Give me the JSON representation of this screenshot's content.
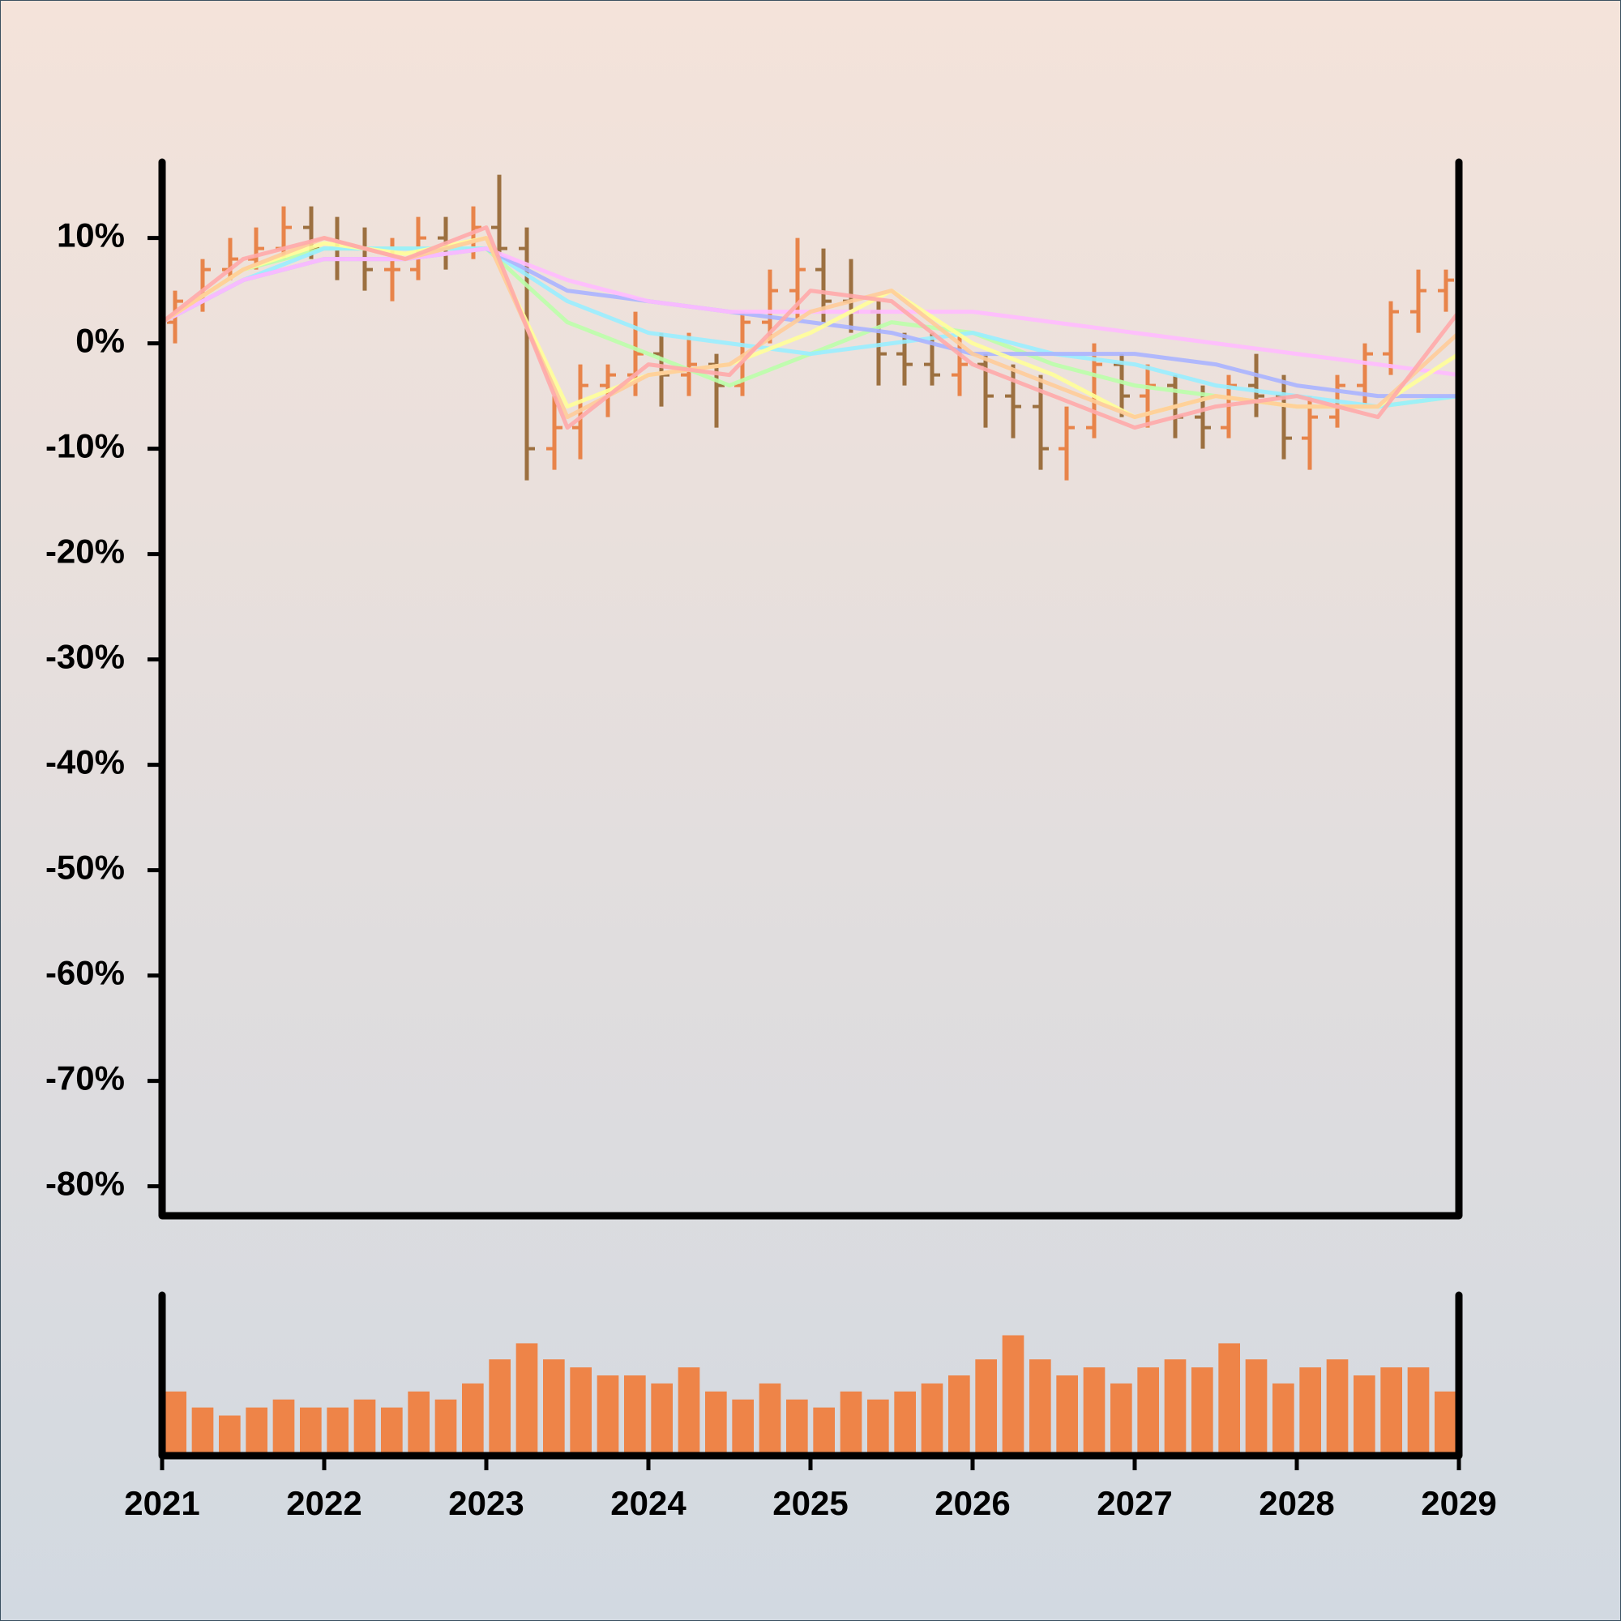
{
  "chart_data": [
    {
      "type": "ohlc",
      "xlim": [
        2021,
        2029
      ],
      "xticks": [
        2021,
        2022,
        2023,
        2024,
        2025,
        2026,
        2027,
        2028,
        2029
      ],
      "ylim": [
        -82.8,
        17.2
      ],
      "yticks": [
        {
          "value": 10,
          "label": "10%"
        },
        {
          "value": 0,
          "label": "0%"
        },
        {
          "value": -10,
          "label": "-10%"
        },
        {
          "value": -20,
          "label": "-20%"
        },
        {
          "value": -30,
          "label": "-30%"
        },
        {
          "value": -40,
          "label": "-40%"
        },
        {
          "value": -50,
          "label": "-50%"
        },
        {
          "value": -60,
          "label": "-60%"
        },
        {
          "value": -70,
          "label": "-70%"
        },
        {
          "value": -80,
          "label": "-80%"
        }
      ],
      "up_color": "#e8844a",
      "down_color": "#9c7040",
      "x": [
        2021.08,
        2021.25,
        2021.42,
        2021.58,
        2021.75,
        2021.92,
        2022.08,
        2022.25,
        2022.42,
        2022.58,
        2022.75,
        2022.92,
        2023.08,
        2023.25,
        2023.42,
        2023.58,
        2023.75,
        2023.92,
        2024.08,
        2024.25,
        2024.42,
        2024.58,
        2024.75,
        2024.92,
        2025.08,
        2025.25,
        2025.42,
        2025.58,
        2025.75,
        2025.92,
        2026.08,
        2026.25,
        2026.42,
        2026.58,
        2026.75,
        2026.92,
        2027.08,
        2027.25,
        2027.42,
        2027.58,
        2027.75,
        2027.92,
        2028.08,
        2028.25,
        2028.42,
        2028.58,
        2028.75,
        2028.92
      ],
      "open": [
        2,
        4,
        7,
        8,
        9,
        11,
        9,
        8,
        7,
        7,
        10,
        9,
        11,
        9,
        -10,
        -8,
        -4,
        -3,
        -1,
        -3,
        -2,
        -4,
        2,
        5,
        7,
        4,
        3,
        -1,
        -2,
        -3,
        -2,
        -5,
        -6,
        -10,
        -8,
        -2,
        -5,
        -4,
        -7,
        -8,
        -4,
        -5,
        -9,
        -7,
        -4,
        -1,
        3,
        5
      ],
      "high": [
        5,
        8,
        10,
        11,
        13,
        13,
        12,
        11,
        10,
        12,
        12,
        13,
        16,
        11,
        -5,
        -2,
        -2,
        3,
        1,
        1,
        -1,
        3,
        7,
        10,
        9,
        8,
        4,
        1,
        1,
        1,
        -1,
        -2,
        -3,
        -6,
        0,
        -1,
        -2,
        -3,
        -4,
        -3,
        -1,
        -3,
        -5,
        -3,
        0,
        4,
        7,
        7
      ],
      "low": [
        0,
        3,
        6,
        7,
        8,
        8,
        6,
        5,
        4,
        6,
        7,
        8,
        8,
        -13,
        -12,
        -11,
        -7,
        -5,
        -6,
        -5,
        -8,
        -5,
        0,
        2,
        2,
        1,
        -4,
        -4,
        -4,
        -5,
        -8,
        -9,
        -12,
        -13,
        -9,
        -7,
        -8,
        -9,
        -10,
        -9,
        -7,
        -11,
        -12,
        -8,
        -6,
        -3,
        1,
        3
      ],
      "close": [
        4,
        7,
        8,
        9,
        11,
        9,
        8,
        7,
        7,
        10,
        9,
        11,
        9,
        -10,
        -8,
        -4,
        -3,
        -1,
        -3,
        -2,
        -4,
        2,
        5,
        7,
        4,
        3,
        -1,
        -2,
        -3,
        -2,
        -5,
        -6,
        -10,
        -8,
        -2,
        -5,
        -4,
        -7,
        -8,
        -4,
        -5,
        -9,
        -7,
        -4,
        -1,
        3,
        5,
        6
      ],
      "lines": {
        "x": [
          2021.0,
          2021.5,
          2022.0,
          2022.5,
          2023.0,
          2023.5,
          2024.0,
          2024.5,
          2025.0,
          2025.5,
          2026.0,
          2026.5,
          2027.0,
          2027.5,
          2028.0,
          2028.5,
          2029.0
        ],
        "series": [
          {
            "color": "#bbffaa",
            "values": [
              2,
              7,
              9,
              9,
              9,
              2,
              -1,
              -4,
              -1,
              2,
              1,
              -2,
              -4,
              -5,
              -6,
              -6,
              -5
            ]
          },
          {
            "color": "#99eeff",
            "values": [
              2,
              6,
              9,
              9,
              9,
              4,
              1,
              0,
              -1,
              0,
              1,
              -1,
              -2,
              -4,
              -5,
              -6,
              -5
            ]
          },
          {
            "color": "#aab4ff",
            "values": [
              2,
              6,
              8,
              8,
              9,
              5,
              4,
              3,
              2,
              1,
              -1,
              -1,
              -1,
              -2,
              -4,
              -5,
              -5
            ]
          },
          {
            "color": "#ffbbff",
            "values": [
              2,
              6,
              8,
              8,
              9,
              6,
              4,
              3,
              3,
              3,
              3,
              2,
              1,
              0,
              -1,
              -2,
              -3
            ]
          },
          {
            "color": "#ffff99",
            "values": [
              2,
              7,
              9.5,
              8.5,
              10,
              -6,
              -3,
              -2,
              1,
              5,
              0,
              -3,
              -7,
              -5,
              -6,
              -6,
              -1
            ]
          },
          {
            "color": "#ffcc99",
            "values": [
              2,
              7,
              10,
              8,
              10,
              -7,
              -3,
              -2,
              3,
              5,
              -1,
              -4,
              -7,
              -5,
              -6,
              -6,
              1
            ]
          },
          {
            "color": "#ffaaaa",
            "values": [
              2,
              8,
              10,
              8,
              11,
              -8,
              -2,
              -3,
              5,
              4,
              -2,
              -5,
              -8,
              -6,
              -5,
              -7,
              3
            ]
          }
        ]
      }
    },
    {
      "type": "bar",
      "ylim": [
        0,
        100
      ],
      "color": "#ee8448",
      "values": [
        40,
        30,
        25,
        30,
        35,
        30,
        30,
        35,
        30,
        40,
        35,
        45,
        60,
        70,
        60,
        55,
        50,
        50,
        45,
        55,
        40,
        35,
        45,
        35,
        30,
        40,
        35,
        40,
        45,
        50,
        60,
        75,
        60,
        50,
        55,
        45,
        55,
        60,
        55,
        70,
        60,
        45,
        55,
        60,
        50,
        55,
        55,
        40
      ]
    }
  ]
}
